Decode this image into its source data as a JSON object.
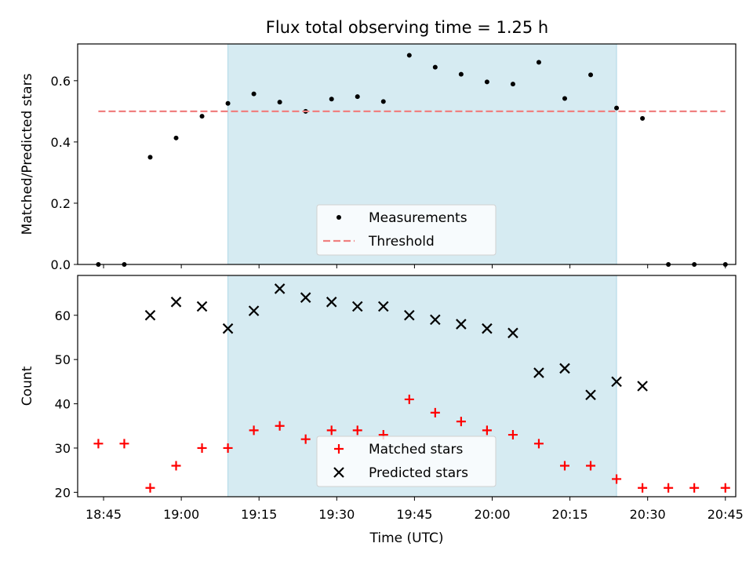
{
  "figure": {
    "title": "Flux total observing time = 1.25 h",
    "shade_color": "#add8e6",
    "shade_range": [
      "19:09",
      "20:24"
    ]
  },
  "chart_data": [
    {
      "type": "scatter",
      "xlabel": "",
      "ylabel": "Matched/Predicted stars",
      "xlim": [
        "18:40",
        "20:47"
      ],
      "ylim": [
        0,
        0.72
      ],
      "yticks": [
        0.0,
        0.2,
        0.4,
        0.6
      ],
      "ytick_labels": [
        "0.0",
        "0.2",
        "0.4",
        "0.6"
      ],
      "grid": false,
      "legend_position": "lower-center",
      "series": [
        {
          "name": "Measurements",
          "color": "#000000",
          "marker": "dot",
          "points": [
            {
              "x": "18:44",
              "y": 0.0
            },
            {
              "x": "18:49",
              "y": 0.0
            },
            {
              "x": "18:54",
              "y": 0.35
            },
            {
              "x": "18:59",
              "y": 0.413
            },
            {
              "x": "19:04",
              "y": 0.484
            },
            {
              "x": "19:09",
              "y": 0.526
            },
            {
              "x": "19:14",
              "y": 0.557
            },
            {
              "x": "19:19",
              "y": 0.53
            },
            {
              "x": "19:24",
              "y": 0.5
            },
            {
              "x": "19:29",
              "y": 0.54
            },
            {
              "x": "19:34",
              "y": 0.548
            },
            {
              "x": "19:39",
              "y": 0.532
            },
            {
              "x": "19:44",
              "y": 0.683
            },
            {
              "x": "19:49",
              "y": 0.644
            },
            {
              "x": "19:54",
              "y": 0.621
            },
            {
              "x": "19:59",
              "y": 0.596
            },
            {
              "x": "20:04",
              "y": 0.589
            },
            {
              "x": "20:09",
              "y": 0.66
            },
            {
              "x": "20:14",
              "y": 0.542
            },
            {
              "x": "20:19",
              "y": 0.619
            },
            {
              "x": "20:24",
              "y": 0.511
            },
            {
              "x": "20:29",
              "y": 0.477
            },
            {
              "x": "20:34",
              "y": 0.0
            },
            {
              "x": "20:39",
              "y": 0.0
            },
            {
              "x": "20:45",
              "y": 0.0
            }
          ]
        },
        {
          "name": "Threshold",
          "color": "#f08080",
          "style": "dashed",
          "x_start": "18:44",
          "x_end": "20:45",
          "y": 0.5
        }
      ]
    },
    {
      "type": "scatter",
      "xlabel": "Time (UTC)",
      "ylabel": "Count",
      "xlim": [
        "18:40",
        "20:47"
      ],
      "ylim": [
        19,
        69
      ],
      "yticks": [
        20,
        30,
        40,
        50,
        60
      ],
      "ytick_labels": [
        "20",
        "30",
        "40",
        "50",
        "60"
      ],
      "xticks": [
        "18:45",
        "19:00",
        "19:15",
        "19:30",
        "19:45",
        "20:00",
        "20:15",
        "20:30",
        "20:45"
      ],
      "grid": false,
      "legend_position": "lower-center",
      "series": [
        {
          "name": "Matched stars",
          "color": "#ff0000",
          "marker": "plus",
          "points": [
            {
              "x": "18:44",
              "y": 31
            },
            {
              "x": "18:49",
              "y": 31
            },
            {
              "x": "18:54",
              "y": 21
            },
            {
              "x": "18:59",
              "y": 26
            },
            {
              "x": "19:04",
              "y": 30
            },
            {
              "x": "19:09",
              "y": 30
            },
            {
              "x": "19:14",
              "y": 34
            },
            {
              "x": "19:19",
              "y": 35
            },
            {
              "x": "19:24",
              "y": 32
            },
            {
              "x": "19:29",
              "y": 34
            },
            {
              "x": "19:34",
              "y": 34
            },
            {
              "x": "19:39",
              "y": 33
            },
            {
              "x": "19:44",
              "y": 41
            },
            {
              "x": "19:49",
              "y": 38
            },
            {
              "x": "19:54",
              "y": 36
            },
            {
              "x": "19:59",
              "y": 34
            },
            {
              "x": "20:04",
              "y": 33
            },
            {
              "x": "20:09",
              "y": 31
            },
            {
              "x": "20:14",
              "y": 26
            },
            {
              "x": "20:19",
              "y": 26
            },
            {
              "x": "20:24",
              "y": 23
            },
            {
              "x": "20:29",
              "y": 21
            },
            {
              "x": "20:34",
              "y": 21
            },
            {
              "x": "20:39",
              "y": 21
            },
            {
              "x": "20:45",
              "y": 21
            }
          ]
        },
        {
          "name": "Predicted stars",
          "color": "#000000",
          "marker": "cross",
          "points": [
            {
              "x": "18:54",
              "y": 60
            },
            {
              "x": "18:59",
              "y": 63
            },
            {
              "x": "19:04",
              "y": 62
            },
            {
              "x": "19:09",
              "y": 57
            },
            {
              "x": "19:14",
              "y": 61
            },
            {
              "x": "19:19",
              "y": 66
            },
            {
              "x": "19:24",
              "y": 64
            },
            {
              "x": "19:29",
              "y": 63
            },
            {
              "x": "19:34",
              "y": 62
            },
            {
              "x": "19:39",
              "y": 62
            },
            {
              "x": "19:44",
              "y": 60
            },
            {
              "x": "19:49",
              "y": 59
            },
            {
              "x": "19:54",
              "y": 58
            },
            {
              "x": "19:59",
              "y": 57
            },
            {
              "x": "20:04",
              "y": 56
            },
            {
              "x": "20:09",
              "y": 47
            },
            {
              "x": "20:14",
              "y": 48
            },
            {
              "x": "20:19",
              "y": 42
            },
            {
              "x": "20:24",
              "y": 45
            },
            {
              "x": "20:29",
              "y": 44
            }
          ]
        }
      ]
    }
  ]
}
